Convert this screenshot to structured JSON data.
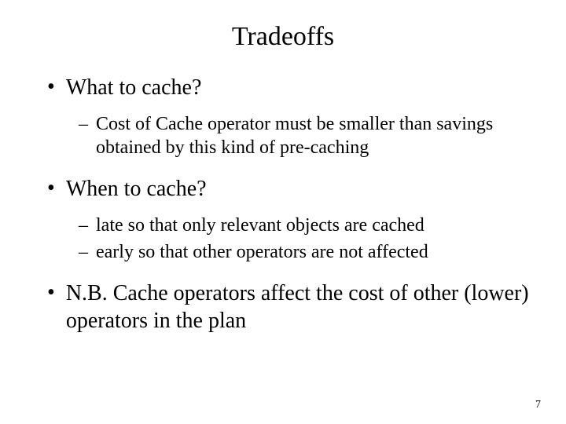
{
  "title": "Tradeoffs",
  "bullets": {
    "b1": "What to cache?",
    "b1_sub1": "Cost of Cache operator must be smaller than savings obtained by this kind of pre-caching",
    "b2": "When to cache?",
    "b2_sub1": "late so that only relevant objects are cached",
    "b2_sub2": "early so that other operators are not affected",
    "b3": "N.B. Cache operators affect the cost of other (lower) operators in the plan"
  },
  "page_number": "7",
  "colors": {
    "background": "#ffffff",
    "text": "#000000"
  },
  "typography": {
    "title_fontsize": 34,
    "bullet_fontsize": 28,
    "sub_bullet_fontsize": 24,
    "page_number_fontsize": 14,
    "font_family": "Times New Roman"
  }
}
